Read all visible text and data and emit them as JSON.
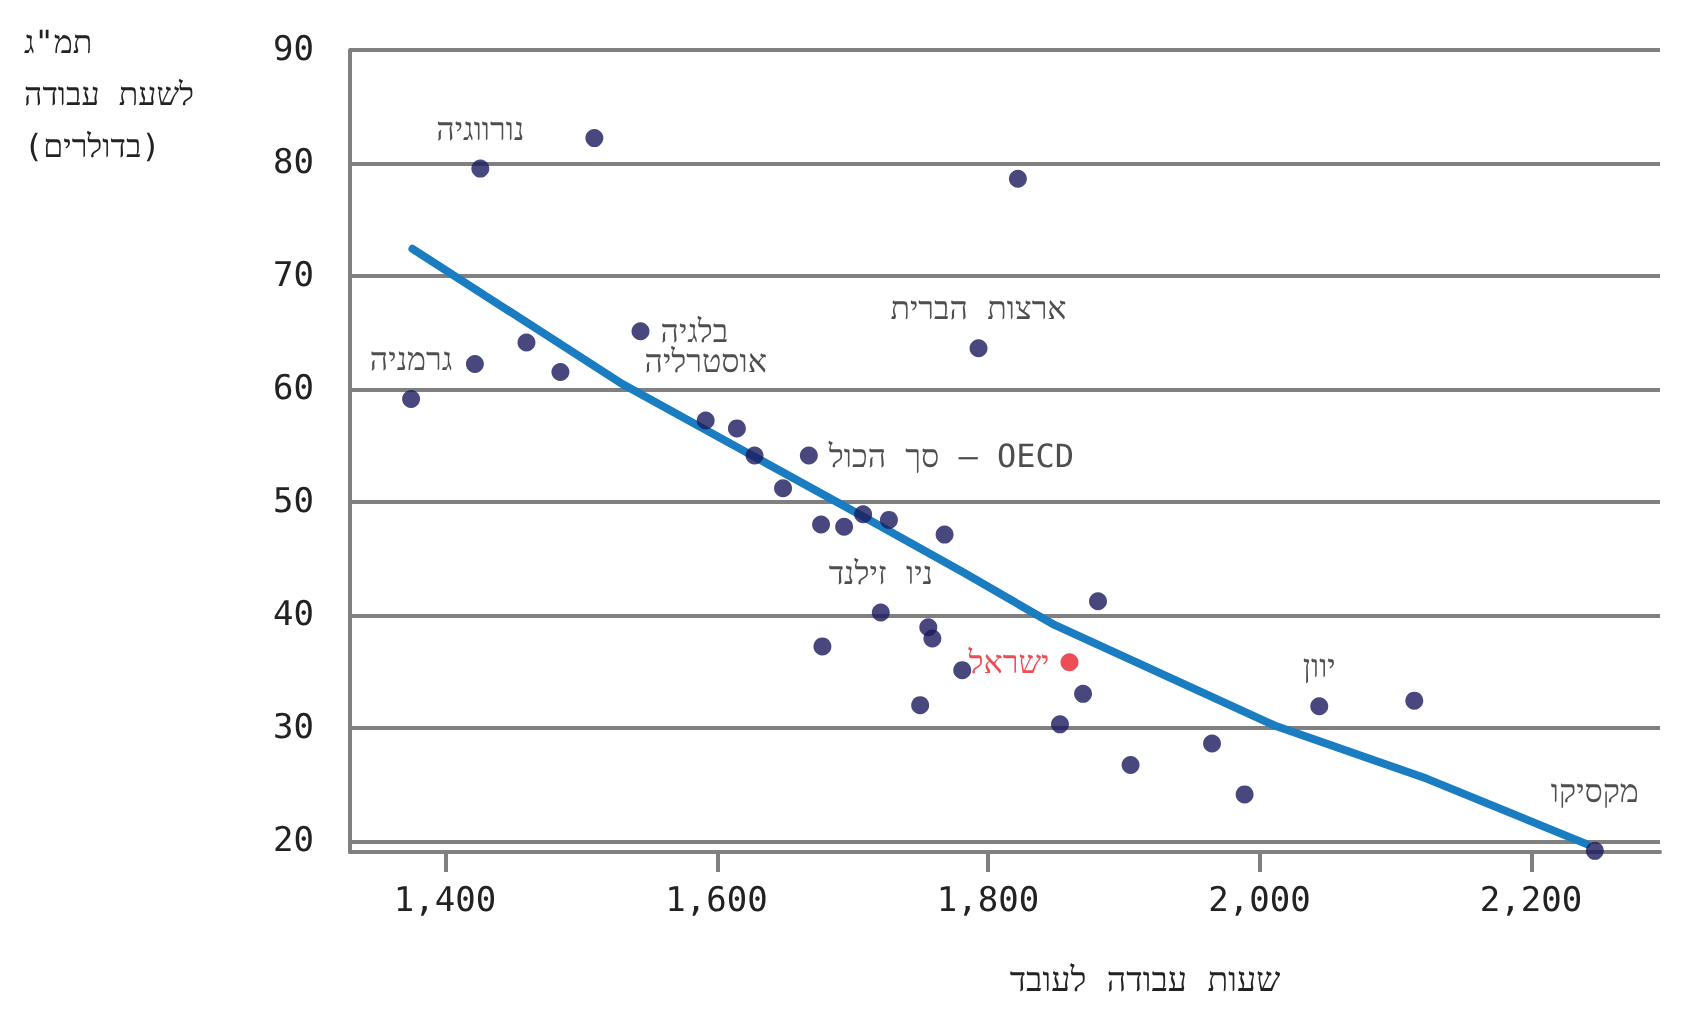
{
  "chart_data": {
    "type": "scatter",
    "ylabel": "תמ\"ג\nלשעת עבודה\n(בדולרים)",
    "xlabel": "שעות עבודה לעובד",
    "xlim": [
      1330,
      2295
    ],
    "xticks": [
      {
        "value": 1400,
        "label": "1,400"
      },
      {
        "value": 1600,
        "label": "1,600"
      },
      {
        "value": 1800,
        "label": "1,800"
      },
      {
        "value": 2000,
        "label": "2,000"
      },
      {
        "value": 2200,
        "label": "2,200"
      }
    ],
    "ylim": [
      19,
      90
    ],
    "yticks": [
      20,
      30,
      40,
      50,
      60,
      70,
      80,
      90
    ],
    "grid": "y",
    "marker": "circle",
    "series": [
      {
        "color": "#1a1a5e",
        "x": [
          1375,
          1426,
          1510,
          1422,
          1460,
          1485,
          1544,
          1822,
          1793,
          1592,
          1615,
          1628,
          1668,
          1649,
          1708,
          1677,
          1694,
          1727,
          1768,
          1721,
          1756,
          1759,
          1678,
          1781,
          1750,
          1860,
          1870,
          1853,
          1881,
          1905,
          1965,
          1989,
          2044,
          2114,
          2247
        ],
        "values": [
          59.1,
          79.5,
          82.2,
          62.2,
          64.1,
          61.5,
          65.1,
          78.6,
          63.6,
          57.2,
          56.5,
          54.1,
          54.1,
          51.2,
          48.9,
          48.0,
          47.8,
          48.4,
          47.1,
          40.2,
          38.9,
          37.9,
          37.2,
          35.1,
          32.0,
          35.8,
          33.0,
          30.3,
          41.2,
          26.7,
          28.6,
          24.1,
          31.9,
          32.4,
          19.1
        ],
        "colors": [
          "#1a1a5e",
          "#1a1a5e",
          "#1a1a5e",
          "#1a1a5e",
          "#1a1a5e",
          "#1a1a5e",
          "#1a1a5e",
          "#1a1a5e",
          "#1a1a5e",
          "#1a1a5e",
          "#1a1a5e",
          "#1a1a5e",
          "#1a1a5e",
          "#1a1a5e",
          "#1a1a5e",
          "#1a1a5e",
          "#1a1a5e",
          "#1a1a5e",
          "#1a1a5e",
          "#1a1a5e",
          "#1a1a5e",
          "#1a1a5e",
          "#1a1a5e",
          "#1a1a5e",
          "#1a1a5e",
          "#e8212a",
          "#1a1a5e",
          "#1a1a5e",
          "#1a1a5e",
          "#1a1a5e",
          "#1a1a5e",
          "#1a1a5e",
          "#1a1a5e",
          "#1a1a5e",
          "#1a1a5e"
        ]
      },
      {
        "type": "line",
        "color": "#1a7cc1",
        "marker": "none",
        "line_style": "solid",
        "x": [
          1376,
          1531,
          1702,
          1781,
          1849,
          2011,
          2123,
          2241
        ],
        "values": [
          72.4,
          60.4,
          49.1,
          43.8,
          39.1,
          30.2,
          25.5,
          19.7
        ]
      }
    ],
    "annotations": [
      {
        "text": "נורווגיה",
        "x": 1426,
        "y": 79.5
      },
      {
        "text": "בלגיה",
        "x": 1544,
        "y": 65.1
      },
      {
        "text": "גרמניה",
        "x": 1375,
        "y": 59.1
      },
      {
        "text": "ארצות הברית",
        "x": 1793,
        "y": 63.6
      },
      {
        "text": "אוסטרליה",
        "x": 1592,
        "y": 57.2
      },
      {
        "text": "סך הכול – OECD",
        "x": 1668,
        "y": 54.1
      },
      {
        "text": "ניו זילנד",
        "x": 1721,
        "y": 40.2
      },
      {
        "text": "ישראל",
        "x": 1860,
        "y": 35.8
      },
      {
        "text": "יוון",
        "x": 2044,
        "y": 31.9
      },
      {
        "text": "מקסיקו",
        "x": 2247,
        "y": 19.1
      }
    ]
  }
}
